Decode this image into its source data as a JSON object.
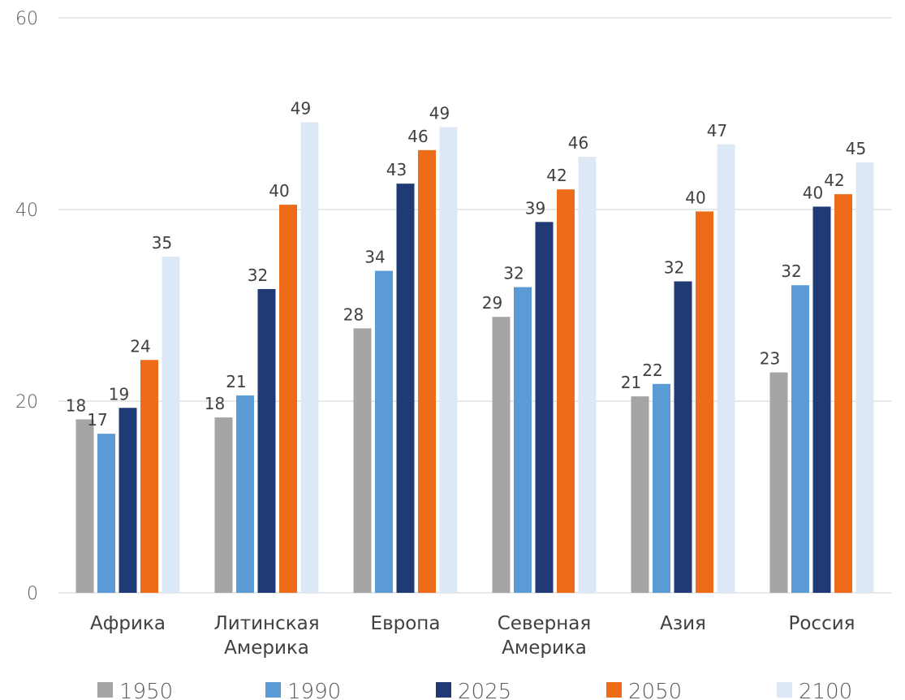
{
  "chart_data": {
    "type": "bar",
    "categories": [
      [
        "Африка"
      ],
      [
        "Литинская",
        "Америка"
      ],
      [
        "Европа"
      ],
      [
        "Северная",
        "Америка"
      ],
      [
        "Азия"
      ],
      [
        "Россия"
      ]
    ],
    "series": [
      {
        "name": "1950",
        "color": "#a5a5a5",
        "values": [
          18.1,
          18.3,
          27.6,
          28.8,
          20.5,
          23.0
        ],
        "labels": [
          "18",
          "18",
          "28",
          "29",
          "21",
          "23"
        ]
      },
      {
        "name": "1990",
        "color": "#5b9bd5",
        "values": [
          16.6,
          20.6,
          33.6,
          31.9,
          21.8,
          32.1
        ],
        "labels": [
          "17",
          "21",
          "34",
          "32",
          "22",
          "32"
        ]
      },
      {
        "name": "2025",
        "color": "#1f3a74",
        "values": [
          19.3,
          31.7,
          42.7,
          38.7,
          32.5,
          40.3
        ],
        "labels": [
          "19",
          "32",
          "43",
          "39",
          "32",
          "40"
        ]
      },
      {
        "name": "2050",
        "color": "#ec6c19",
        "values": [
          24.3,
          40.5,
          46.2,
          42.1,
          39.8,
          41.6
        ],
        "labels": [
          "24",
          "40",
          "46",
          "42",
          "40",
          "42"
        ]
      },
      {
        "name": "2100",
        "color": "#dce8f5",
        "values": [
          35.1,
          49.1,
          48.6,
          45.5,
          46.8,
          44.9
        ],
        "labels": [
          "35",
          "49",
          "49",
          "46",
          "47",
          "45"
        ]
      }
    ],
    "yticks": [
      "0",
      "20",
      "40",
      "60"
    ],
    "ylim": [
      0,
      60
    ],
    "grid": true,
    "legend": "bottom",
    "title": "",
    "xlabel": "",
    "ylabel": ""
  }
}
